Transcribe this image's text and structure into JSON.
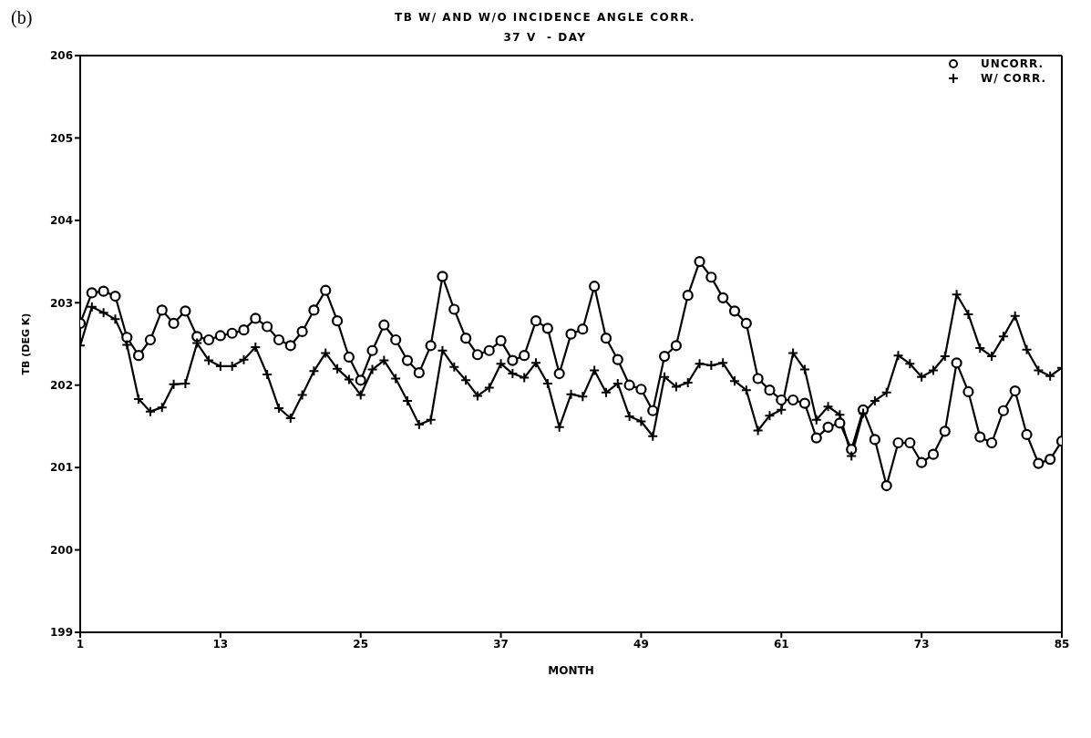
{
  "chart_data": {
    "type": "line",
    "title": "TB W/ AND W/O INCIDENCE ANGLE CORR.",
    "subtitle": "37 V  - DAY",
    "xlabel": "MONTH",
    "ylabel": "TB (DEG K)",
    "annotations": [
      "(b)"
    ],
    "x": [
      1,
      2,
      3,
      4,
      5,
      6,
      7,
      8,
      9,
      10,
      11,
      12,
      13,
      14,
      15,
      16,
      17,
      18,
      19,
      20,
      21,
      22,
      23,
      24,
      25,
      26,
      27,
      28,
      29,
      30,
      31,
      32,
      33,
      34,
      35,
      36,
      37,
      38,
      39,
      40,
      41,
      42,
      43,
      44,
      45,
      46,
      47,
      48,
      49,
      50,
      51,
      52,
      53,
      54,
      55,
      56,
      57,
      58,
      59,
      60,
      61,
      62,
      63,
      64,
      65,
      66,
      67,
      68,
      69,
      70,
      71,
      72,
      73,
      74,
      75,
      76,
      77,
      78,
      79,
      80,
      81,
      82,
      83,
      84,
      85
    ],
    "series": [
      {
        "name": "UNCORR.",
        "color": "#000000",
        "marker": "circle",
        "values": [
          202.75,
          203.12,
          203.14,
          203.08,
          202.58,
          202.36,
          202.55,
          202.91,
          202.75,
          202.9,
          202.59,
          202.55,
          202.6,
          202.63,
          202.67,
          202.81,
          202.71,
          202.55,
          202.48,
          202.65,
          202.91,
          203.15,
          202.78,
          202.34,
          202.06,
          202.42,
          202.73,
          202.55,
          202.3,
          202.15,
          202.48,
          203.32,
          202.92,
          202.57,
          202.37,
          202.42,
          202.54,
          202.3,
          202.36,
          202.78,
          202.69,
          202.14,
          202.62,
          202.68,
          203.2,
          202.57,
          202.31,
          202.0,
          201.95,
          201.69,
          202.35,
          202.48,
          203.09,
          203.5,
          203.31,
          203.06,
          202.9,
          202.75,
          202.08,
          201.94,
          201.82,
          201.82,
          201.78,
          201.36,
          201.49,
          201.54,
          201.22,
          201.7,
          201.34,
          200.78,
          201.3,
          201.3,
          201.06,
          201.16,
          201.44,
          202.27,
          201.92,
          201.37,
          201.3,
          201.69,
          201.93,
          201.4,
          201.05,
          201.1,
          201.32
        ]
      },
      {
        "name": "W/ CORR.",
        "color": "#000000",
        "marker": "cross",
        "values": [
          202.48,
          202.95,
          202.88,
          202.8,
          202.49,
          201.83,
          201.68,
          201.73,
          202.01,
          202.02,
          202.51,
          202.3,
          202.23,
          202.23,
          202.31,
          202.46,
          202.13,
          201.72,
          201.6,
          201.88,
          202.17,
          202.39,
          202.2,
          202.07,
          201.88,
          202.19,
          202.3,
          202.08,
          201.81,
          201.52,
          201.58,
          202.42,
          202.22,
          202.06,
          201.87,
          201.97,
          202.26,
          202.14,
          202.09,
          202.27,
          202.02,
          201.49,
          201.89,
          201.86,
          202.18,
          201.91,
          202.02,
          201.62,
          201.56,
          201.38,
          202.1,
          201.98,
          202.03,
          202.26,
          202.24,
          202.27,
          202.05,
          201.94,
          201.45,
          201.63,
          201.7,
          202.39,
          202.19,
          201.58,
          201.74,
          201.64,
          201.14,
          201.66,
          201.81,
          201.91,
          202.36,
          202.26,
          202.1,
          202.18,
          202.35,
          203.1,
          202.86,
          202.45,
          202.35,
          202.59,
          202.84,
          202.43,
          202.18,
          202.11,
          202.21
        ]
      }
    ],
    "xlim": [
      1,
      85
    ],
    "xticks": [
      1,
      13,
      25,
      37,
      49,
      61,
      73,
      85
    ],
    "ylim": [
      199,
      206
    ],
    "yticks": [
      199,
      200,
      201,
      202,
      203,
      204,
      205,
      206
    ],
    "grid": false,
    "legend": "top right",
    "line_style": "solid"
  }
}
